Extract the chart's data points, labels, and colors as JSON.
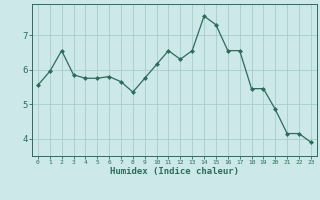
{
  "x": [
    0,
    1,
    2,
    3,
    4,
    5,
    6,
    7,
    8,
    9,
    10,
    11,
    12,
    13,
    14,
    15,
    16,
    17,
    18,
    19,
    20,
    21,
    22,
    23
  ],
  "y": [
    5.55,
    5.95,
    6.55,
    5.85,
    5.75,
    5.75,
    5.8,
    5.65,
    5.35,
    5.75,
    6.15,
    6.55,
    6.3,
    6.55,
    7.55,
    7.3,
    6.55,
    6.55,
    5.45,
    5.45,
    4.85,
    4.15,
    4.15,
    3.9
  ],
  "xlabel": "Humidex (Indice chaleur)",
  "line_color": "#2e6b5e",
  "marker_color": "#2e6b5e",
  "bg_color": "#cce8e8",
  "grid_color": "#a8cccc",
  "axis_color": "#2e6b5e",
  "text_color": "#2e6b5e",
  "ylim": [
    3.5,
    7.9
  ],
  "yticks": [
    4,
    5,
    6,
    7
  ],
  "xlim": [
    -0.5,
    23.5
  ]
}
